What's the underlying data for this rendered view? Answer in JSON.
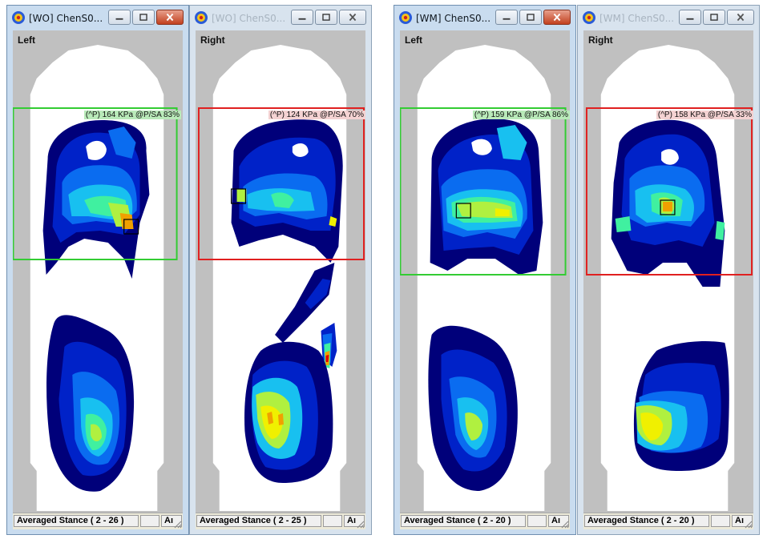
{
  "windows": [
    {
      "title": "[WO] ChenS0...",
      "active": true,
      "side_label": "Left",
      "roi_label": "(^P) 164 KPa @P/SA 83%",
      "roi_color": "#33cc33",
      "status": "Averaged Stance ( 2 - 26 )",
      "unit": "Aı"
    },
    {
      "title": "[WO] ChenS0...",
      "active": false,
      "side_label": "Right",
      "roi_label": "(^P) 124 KPa @P/SA 70%",
      "roi_color": "#e02020",
      "status": "Averaged Stance ( 2 - 25 )",
      "unit": "Aı"
    },
    {
      "title": "[WM] ChenS0...",
      "active": true,
      "side_label": "Left",
      "roi_label": "(^P) 159 KPa @P/SA 86%",
      "roi_color": "#33cc33",
      "status": "Averaged Stance ( 2 - 20 )",
      "unit": "Aı"
    },
    {
      "title": "[WM] ChenS0...",
      "active": false,
      "side_label": "Right",
      "roi_label": "(^P) 158 KPa @P/SA 33%",
      "roi_color": "#e02020",
      "status": "Averaged Stance ( 2 - 20 )",
      "unit": "Aı"
    }
  ],
  "colors": {
    "insole_outline": "#c0c0c0",
    "pressure_scale": [
      "#00007a",
      "#0022c8",
      "#0a6cf0",
      "#18c0f0",
      "#40f0a0",
      "#b0f040",
      "#f0f000",
      "#f0a000",
      "#e00000"
    ]
  },
  "icons": {
    "app": "app-logo-icon",
    "minimize": "minimize-icon",
    "maximize": "maximize-icon",
    "close": "close-icon",
    "resize": "resize-grip-icon"
  }
}
